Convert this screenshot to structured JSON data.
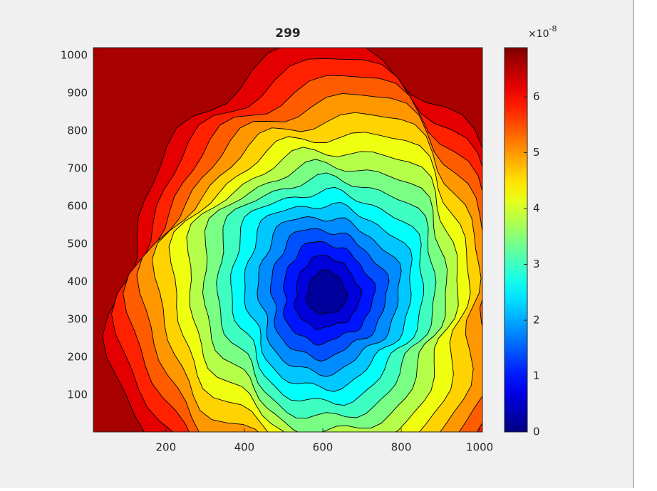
{
  "chart_data": {
    "type": "contour",
    "title": "299",
    "xlim": [
      15,
      1007
    ],
    "ylim": [
      2,
      1021
    ],
    "xticks": [
      200,
      400,
      600,
      800,
      1000
    ],
    "yticks": [
      100,
      200,
      300,
      400,
      500,
      600,
      700,
      800,
      900,
      1000
    ],
    "colormap": "jet",
    "clim": [
      0,
      6.88
    ],
    "colorbar_ticks": [
      0,
      1,
      2,
      3,
      4,
      5,
      6
    ],
    "colorbar_multiplier": "×10",
    "colorbar_exponent": "-8",
    "levels": [
      0.4,
      0.8,
      1.2,
      1.6,
      2.0,
      2.4,
      2.8,
      3.2,
      3.6,
      4.0,
      4.4,
      4.8,
      5.2,
      5.6,
      6.0,
      6.4
    ]
  }
}
